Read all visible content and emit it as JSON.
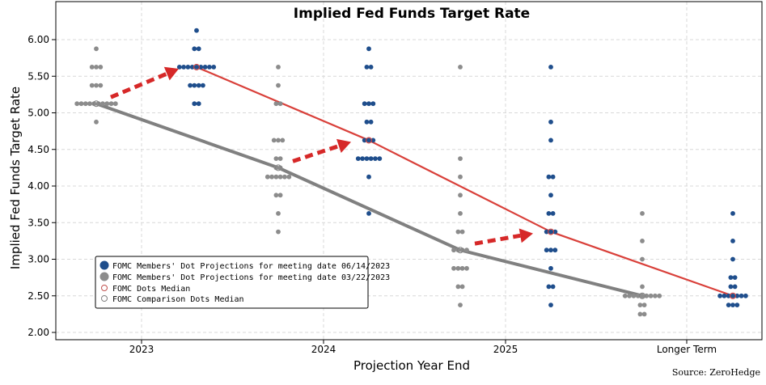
{
  "chart_data": {
    "type": "scatter",
    "title": "Implied Fed Funds Target Rate",
    "xlabel": "Projection Year End",
    "ylabel": "Implied Fed Funds Target Rate",
    "source": "Source: ZeroHedge",
    "categories": [
      "2023",
      "2024",
      "2025",
      "Longer Term"
    ],
    "ylim": [
      1.9,
      6.35
    ],
    "yticks": [
      "2.00",
      "2.50",
      "3.00",
      "3.50",
      "4.00",
      "4.50",
      "5.00",
      "5.50",
      "6.00"
    ],
    "grid": true,
    "legend_position": "bottom-left",
    "colors": {
      "june": "#1f4e8c",
      "march": "#8c8c8c",
      "june_median_line": "#d9403a",
      "march_median_line": "#808080",
      "arrow": "#d62828"
    },
    "series": [
      {
        "name": "FOMC Members' Dot Projections for meeting date 06/14/2023",
        "points": [
          {
            "category": "2023",
            "y": 6.125,
            "n": 1
          },
          {
            "category": "2023",
            "y": 5.875,
            "n": 2
          },
          {
            "category": "2023",
            "y": 5.625,
            "n": 9
          },
          {
            "category": "2023",
            "y": 5.375,
            "n": 4
          },
          {
            "category": "2023",
            "y": 5.125,
            "n": 2
          },
          {
            "category": "2024",
            "y": 5.875,
            "n": 1
          },
          {
            "category": "2024",
            "y": 5.625,
            "n": 2
          },
          {
            "category": "2024",
            "y": 5.125,
            "n": 3
          },
          {
            "category": "2024",
            "y": 4.875,
            "n": 2
          },
          {
            "category": "2024",
            "y": 4.625,
            "n": 3
          },
          {
            "category": "2024",
            "y": 4.375,
            "n": 6
          },
          {
            "category": "2024",
            "y": 4.125,
            "n": 1
          },
          {
            "category": "2024",
            "y": 3.625,
            "n": 1
          },
          {
            "category": "2025",
            "y": 5.625,
            "n": 1
          },
          {
            "category": "2025",
            "y": 4.875,
            "n": 1
          },
          {
            "category": "2025",
            "y": 4.625,
            "n": 1
          },
          {
            "category": "2025",
            "y": 4.125,
            "n": 2
          },
          {
            "category": "2025",
            "y": 3.875,
            "n": 1
          },
          {
            "category": "2025",
            "y": 3.625,
            "n": 2
          },
          {
            "category": "2025",
            "y": 3.375,
            "n": 3
          },
          {
            "category": "2025",
            "y": 3.125,
            "n": 3
          },
          {
            "category": "2025",
            "y": 2.875,
            "n": 1
          },
          {
            "category": "2025",
            "y": 2.625,
            "n": 2
          },
          {
            "category": "2025",
            "y": 2.375,
            "n": 1
          },
          {
            "category": "Longer Term",
            "y": 3.625,
            "n": 1
          },
          {
            "category": "Longer Term",
            "y": 3.25,
            "n": 1
          },
          {
            "category": "Longer Term",
            "y": 3.0,
            "n": 1
          },
          {
            "category": "Longer Term",
            "y": 2.75,
            "n": 2
          },
          {
            "category": "Longer Term",
            "y": 2.625,
            "n": 2
          },
          {
            "category": "Longer Term",
            "y": 2.5,
            "n": 7
          },
          {
            "category": "Longer Term",
            "y": 2.375,
            "n": 3
          }
        ]
      },
      {
        "name": "FOMC Members' Dot Projections for meeting date 03/22/2023",
        "points": [
          {
            "category": "2023",
            "y": 5.875,
            "n": 1
          },
          {
            "category": "2023",
            "y": 5.625,
            "n": 3
          },
          {
            "category": "2023",
            "y": 5.375,
            "n": 3
          },
          {
            "category": "2023",
            "y": 5.125,
            "n": 10
          },
          {
            "category": "2023",
            "y": 4.875,
            "n": 1
          },
          {
            "category": "2024",
            "y": 5.625,
            "n": 1
          },
          {
            "category": "2024",
            "y": 5.375,
            "n": 1
          },
          {
            "category": "2024",
            "y": 5.125,
            "n": 2
          },
          {
            "category": "2024",
            "y": 4.625,
            "n": 3
          },
          {
            "category": "2024",
            "y": 4.375,
            "n": 2
          },
          {
            "category": "2024",
            "y": 4.25,
            "n": 2
          },
          {
            "category": "2024",
            "y": 4.125,
            "n": 6
          },
          {
            "category": "2024",
            "y": 3.875,
            "n": 2
          },
          {
            "category": "2024",
            "y": 3.625,
            "n": 1
          },
          {
            "category": "2024",
            "y": 3.375,
            "n": 1
          },
          {
            "category": "2025",
            "y": 5.625,
            "n": 1
          },
          {
            "category": "2025",
            "y": 4.375,
            "n": 1
          },
          {
            "category": "2025",
            "y": 4.125,
            "n": 1
          },
          {
            "category": "2025",
            "y": 3.875,
            "n": 1
          },
          {
            "category": "2025",
            "y": 3.625,
            "n": 1
          },
          {
            "category": "2025",
            "y": 3.375,
            "n": 2
          },
          {
            "category": "2025",
            "y": 3.125,
            "n": 4
          },
          {
            "category": "2025",
            "y": 2.875,
            "n": 4
          },
          {
            "category": "2025",
            "y": 2.625,
            "n": 2
          },
          {
            "category": "2025",
            "y": 2.375,
            "n": 1
          },
          {
            "category": "Longer Term",
            "y": 3.625,
            "n": 1
          },
          {
            "category": "Longer Term",
            "y": 3.25,
            "n": 1
          },
          {
            "category": "Longer Term",
            "y": 3.0,
            "n": 1
          },
          {
            "category": "Longer Term",
            "y": 2.625,
            "n": 1
          },
          {
            "category": "Longer Term",
            "y": 2.5,
            "n": 9
          },
          {
            "category": "Longer Term",
            "y": 2.375,
            "n": 2
          },
          {
            "category": "Longer Term",
            "y": 2.25,
            "n": 2
          }
        ]
      }
    ],
    "medians": [
      {
        "name": "FOMC Dots Median",
        "values": [
          {
            "category": "2023",
            "y": 5.625
          },
          {
            "category": "2024",
            "y": 4.625
          },
          {
            "category": "2025",
            "y": 3.375
          },
          {
            "category": "Longer Term",
            "y": 2.5
          }
        ]
      },
      {
        "name": "FOMC Comparison Dots Median",
        "values": [
          {
            "category": "2023",
            "y": 5.125
          },
          {
            "category": "2024",
            "y": 4.25
          },
          {
            "category": "2025",
            "y": 3.125
          },
          {
            "category": "Longer Term",
            "y": 2.5
          }
        ]
      }
    ],
    "annotations": [
      {
        "type": "arrow",
        "from": {
          "category": "2023",
          "y": 5.125
        },
        "to": {
          "category": "2023",
          "y": 5.625
        }
      },
      {
        "type": "arrow",
        "from": {
          "category": "2024",
          "y": 4.25
        },
        "to": {
          "category": "2024",
          "y": 4.625
        }
      },
      {
        "type": "arrow",
        "from": {
          "category": "2025",
          "y": 3.125
        },
        "to": {
          "category": "2025",
          "y": 3.375
        }
      }
    ]
  }
}
